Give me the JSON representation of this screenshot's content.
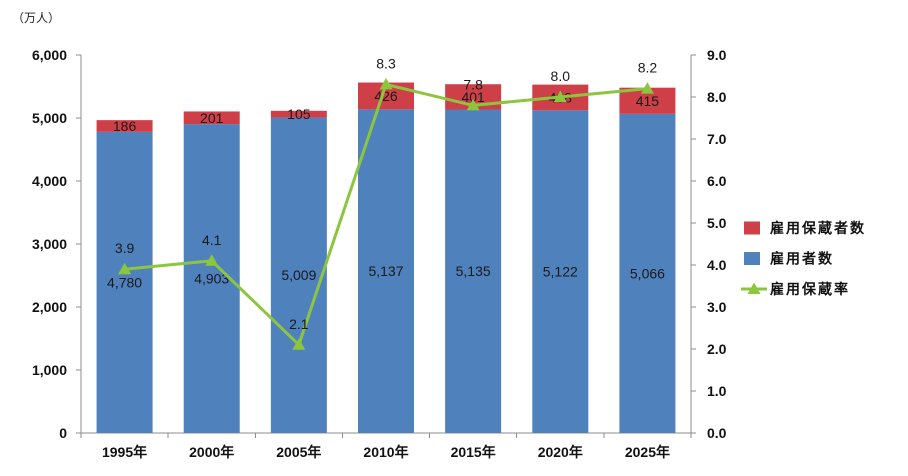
{
  "chart_data": {
    "type": "bar",
    "stacked": true,
    "categories": [
      "1995年",
      "2000年",
      "2005年",
      "2010年",
      "2015年",
      "2020年",
      "2025年"
    ],
    "series": [
      {
        "name": "雇用者数",
        "type": "bar",
        "axis": "left",
        "color": "#4F81BD",
        "values": [
          4780,
          4903,
          5009,
          5137,
          5135,
          5122,
          5066
        ],
        "data_labels": [
          "4,780",
          "4,903",
          "5,009",
          "5,137",
          "5,135",
          "5,122",
          "5,066"
        ]
      },
      {
        "name": "雇用保蔵者数",
        "type": "bar",
        "axis": "left",
        "color": "#CE3F48",
        "values": [
          186,
          201,
          105,
          426,
          401,
          408,
          415
        ],
        "data_labels": [
          "186",
          "201",
          "105",
          "426",
          "401",
          "408",
          "415"
        ]
      },
      {
        "name": "雇用保蔵率",
        "type": "line",
        "axis": "right",
        "color": "#8CC63F",
        "marker": "triangle",
        "values": [
          3.9,
          4.1,
          2.1,
          8.3,
          7.8,
          8.0,
          8.2
        ],
        "data_labels": [
          "3.9",
          "4.1",
          "2.1",
          "8.3",
          "7.8",
          "8.0",
          "8.2"
        ]
      }
    ],
    "ylabel": "（万人）",
    "ylim": [
      0,
      6000
    ],
    "yticks": [
      "0",
      "1,000",
      "2,000",
      "3,000",
      "4,000",
      "5,000",
      "6,000"
    ],
    "y2lim": [
      0,
      9
    ],
    "y2ticks": [
      "0.0",
      "1.0",
      "2.0",
      "3.0",
      "4.0",
      "5.0",
      "6.0",
      "7.0",
      "8.0",
      "9.0"
    ],
    "grid": false,
    "legend": {
      "position": "right",
      "order": [
        1,
        0,
        2
      ]
    }
  }
}
